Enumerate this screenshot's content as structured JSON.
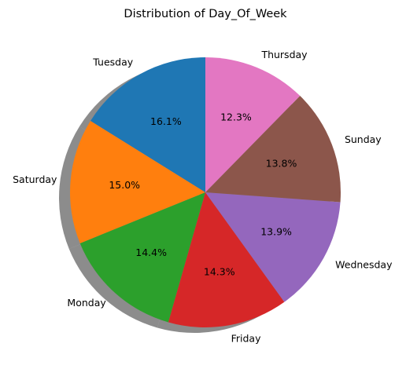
{
  "chart_data": {
    "type": "pie",
    "title": "Distribution of Day_Of_Week",
    "start_angle_deg": 90,
    "direction": "counterclockwise",
    "shadow": true,
    "slices": [
      {
        "label": "Tuesday",
        "percent_label": "16.1%",
        "value": 16.1,
        "color": "#1f77b4"
      },
      {
        "label": "Saturday",
        "percent_label": "15.0%",
        "value": 15.0,
        "color": "#ff7f0e"
      },
      {
        "label": "Monday",
        "percent_label": "14.4%",
        "value": 14.4,
        "color": "#2ca02c"
      },
      {
        "label": "Friday",
        "percent_label": "14.3%",
        "value": 14.3,
        "color": "#d62728"
      },
      {
        "label": "Wednesday",
        "percent_label": "13.9%",
        "value": 13.9,
        "color": "#9467bd"
      },
      {
        "label": "Sunday",
        "percent_label": "13.8%",
        "value": 13.8,
        "color": "#8c564b"
      },
      {
        "label": "Thursday",
        "percent_label": "12.3%",
        "value": 12.3,
        "color": "#e377c2"
      }
    ]
  }
}
